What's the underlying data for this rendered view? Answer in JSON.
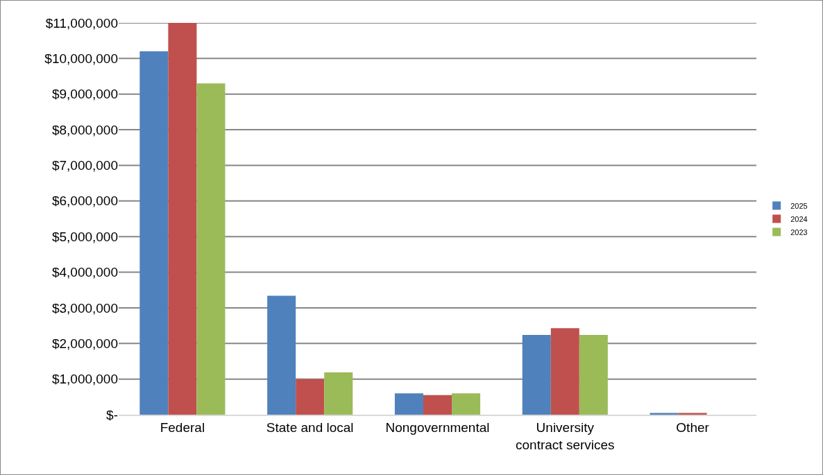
{
  "chart_data": {
    "type": "bar",
    "categories": [
      "Federal",
      "State and local",
      "Nongovernmental",
      "University contract services",
      "Other"
    ],
    "series": [
      {
        "name": "2025",
        "color": "#4f81bd",
        "values": [
          10200000,
          3340000,
          600000,
          2240000,
          50000
        ]
      },
      {
        "name": "2024",
        "color": "#c0504d",
        "values": [
          11000000,
          1000000,
          550000,
          2430000,
          50000
        ]
      },
      {
        "name": "2023",
        "color": "#9bbb59",
        "values": [
          9300000,
          1190000,
          600000,
          2240000,
          0
        ]
      }
    ],
    "ylim": [
      0,
      11000000
    ],
    "yticks": [
      {
        "value": 0,
        "label": "$-"
      },
      {
        "value": 1000000,
        "label": "$1,000,000"
      },
      {
        "value": 2000000,
        "label": "$2,000,000"
      },
      {
        "value": 3000000,
        "label": "$3,000,000"
      },
      {
        "value": 4000000,
        "label": "$4,000,000"
      },
      {
        "value": 5000000,
        "label": "$5,000,000"
      },
      {
        "value": 6000000,
        "label": "$6,000,000"
      },
      {
        "value": 7000000,
        "label": "$7,000,000"
      },
      {
        "value": 8000000,
        "label": "$8,000,000"
      },
      {
        "value": 9000000,
        "label": "$9,000,000"
      },
      {
        "value": 10000000,
        "label": "$10,000,000"
      },
      {
        "value": 11000000,
        "label": "$11,000,000"
      }
    ],
    "grid": "y",
    "legend": "right"
  }
}
